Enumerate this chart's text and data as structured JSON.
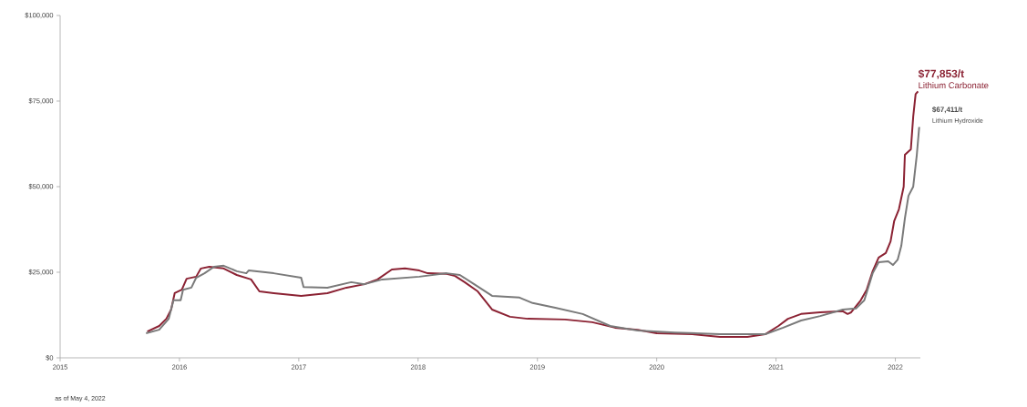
{
  "chart_data": {
    "type": "line",
    "xlim": [
      2015,
      2022.21
    ],
    "ylim": [
      0,
      100000
    ],
    "xticks": [
      2015,
      2016,
      2017,
      2018,
      2019,
      2020,
      2021,
      2022
    ],
    "yticks": [
      {
        "value": 0,
        "label": "$0"
      },
      {
        "value": 25000,
        "label": "$25,000"
      },
      {
        "value": 50000,
        "label": "$50,000"
      },
      {
        "value": 75000,
        "label": "$75,000"
      },
      {
        "value": 100000,
        "label": "$100,000"
      }
    ],
    "grid": false,
    "legend": false,
    "marker": "none",
    "line_style": "solid",
    "series": [
      {
        "name": "Lithium Carbonate",
        "color": "#8b2233",
        "x": [
          2015.73,
          2015.83,
          2015.89,
          2015.93,
          2015.96,
          2016.02,
          2016.06,
          2016.14,
          2016.18,
          2016.25,
          2016.37,
          2016.48,
          2016.6,
          2016.67,
          2016.79,
          2017.02,
          2017.24,
          2017.4,
          2017.55,
          2017.66,
          2017.78,
          2017.89,
          2018.01,
          2018.08,
          2018.24,
          2018.31,
          2018.39,
          2018.5,
          2018.62,
          2018.77,
          2018.92,
          2019.23,
          2019.46,
          2019.65,
          2019.84,
          2020.0,
          2020.3,
          2020.53,
          2020.76,
          2020.91,
          2021.02,
          2021.1,
          2021.21,
          2021.37,
          2021.56,
          2021.6,
          2021.63,
          2021.71,
          2021.76,
          2021.81,
          2021.86,
          2021.92,
          2021.96,
          2021.99,
          2022.03,
          2022.07,
          2022.08,
          2022.13,
          2022.15,
          2022.17,
          2022.19
        ],
        "values": [
          7700,
          9300,
          11400,
          14100,
          18900,
          19900,
          23100,
          23700,
          26100,
          26600,
          26100,
          24200,
          22900,
          19400,
          18900,
          18100,
          18900,
          20500,
          21500,
          22900,
          25800,
          26100,
          25500,
          24700,
          24500,
          23900,
          22100,
          19400,
          14100,
          12000,
          11400,
          11200,
          10400,
          8800,
          8200,
          7200,
          6900,
          6100,
          6100,
          6900,
          9300,
          11400,
          12800,
          13300,
          13600,
          12800,
          13300,
          16800,
          19900,
          25300,
          29300,
          30600,
          34000,
          39900,
          43400,
          50000,
          59300,
          60900,
          70500,
          77000,
          77853
        ]
      },
      {
        "name": "Lithium Hydroxide",
        "color": "#7a7a7a",
        "x": [
          2015.72,
          2015.83,
          2015.91,
          2015.95,
          2016.01,
          2016.03,
          2016.1,
          2016.14,
          2016.21,
          2016.29,
          2016.37,
          2016.48,
          2016.56,
          2016.58,
          2016.79,
          2017.02,
          2017.04,
          2017.24,
          2017.44,
          2017.55,
          2017.7,
          2018.01,
          2018.24,
          2018.35,
          2018.47,
          2018.62,
          2018.85,
          2018.96,
          2019.15,
          2019.38,
          2019.61,
          2019.84,
          2020.15,
          2020.53,
          2020.91,
          2021.06,
          2021.21,
          2021.37,
          2021.56,
          2021.67,
          2021.74,
          2021.81,
          2021.86,
          2021.94,
          2021.98,
          2022.02,
          2022.05,
          2022.08,
          2022.11,
          2022.15,
          2022.18,
          2022.2
        ],
        "values": [
          7200,
          8200,
          11400,
          16800,
          16800,
          19900,
          20500,
          23400,
          24700,
          26600,
          26900,
          25300,
          24700,
          25500,
          24700,
          23400,
          20700,
          20500,
          22100,
          21500,
          22900,
          23700,
          24700,
          24200,
          21500,
          18100,
          17600,
          16000,
          14600,
          12800,
          9300,
          8000,
          7400,
          6900,
          6900,
          8800,
          10900,
          12200,
          14100,
          14400,
          16800,
          24700,
          27900,
          28200,
          27100,
          28700,
          32700,
          40700,
          47300,
          50000,
          59300,
          67411
        ]
      }
    ],
    "annotations": [
      {
        "text": "$77,853/t",
        "x": 2022.19,
        "y": 77853
      },
      {
        "text": "$67,411/t",
        "x": 2022.2,
        "y": 67411
      },
      "as of May 4, 2022"
    ]
  }
}
